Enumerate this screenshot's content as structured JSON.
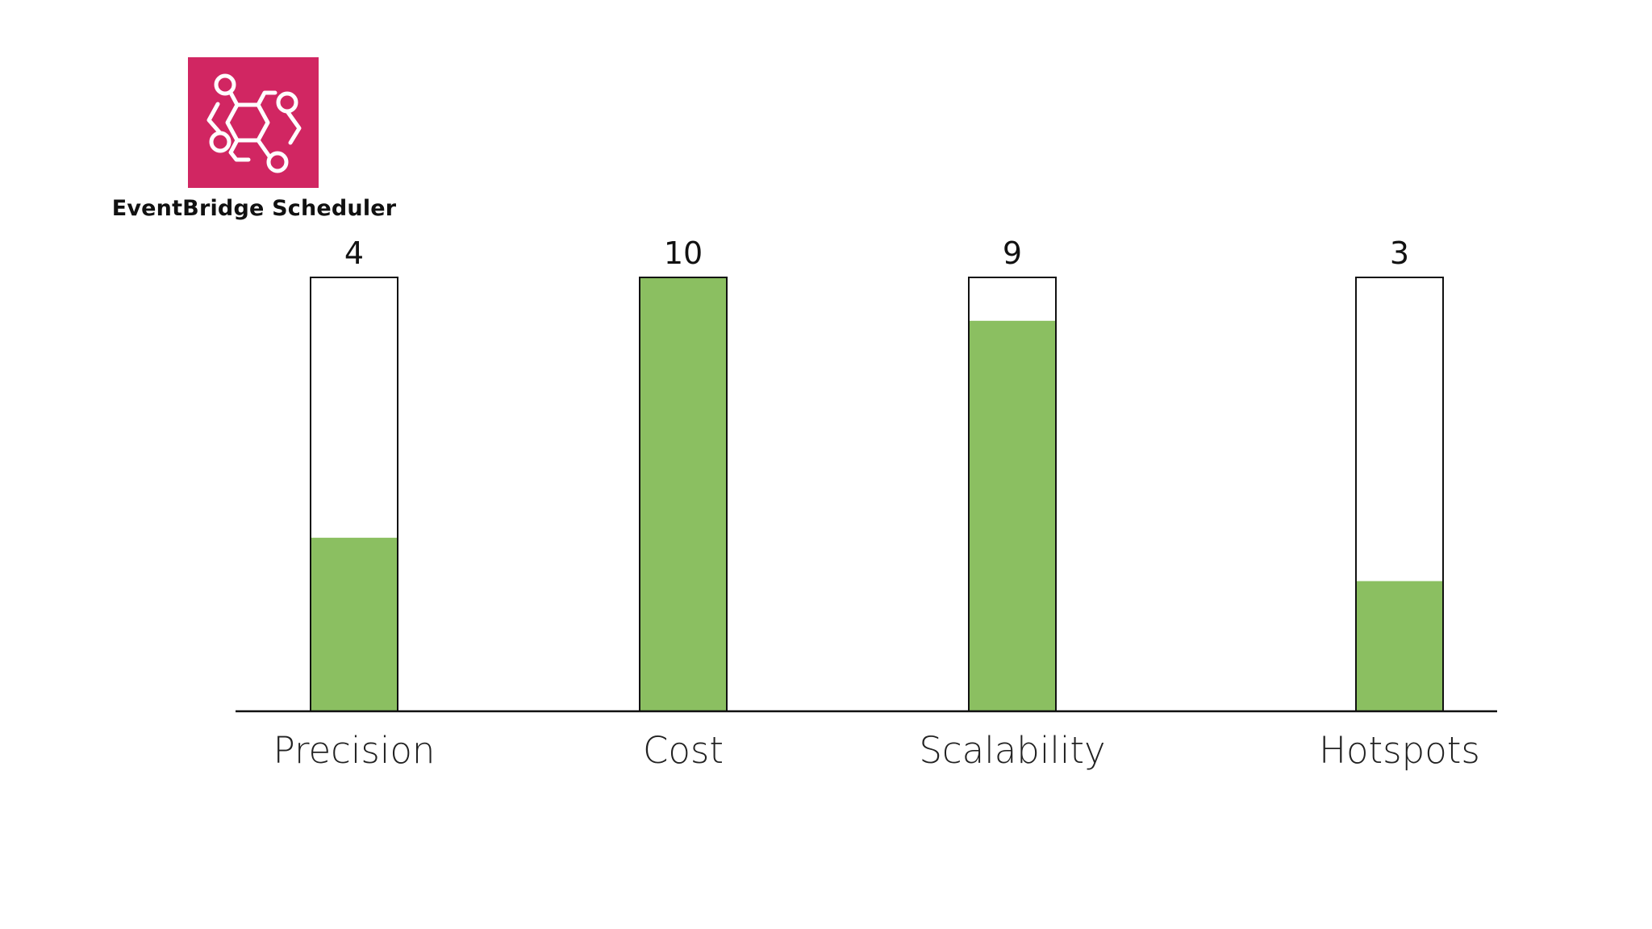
{
  "brand": {
    "name": "EventBridge Scheduler",
    "icon": "eventbridge-scheduler-icon",
    "icon_bg_color": "#D12662",
    "icon_fg_color": "#FFFFFF"
  },
  "colors": {
    "fill": "#8BBF61",
    "outline": "#111111",
    "baseline": "#111111"
  },
  "chart_data": {
    "type": "bar",
    "categories": [
      "Precision",
      "Cost",
      "Scalability",
      "Hotspots"
    ],
    "values": [
      4,
      10,
      9,
      3
    ],
    "ylim": [
      0,
      10
    ],
    "grid": false,
    "legend": "none",
    "title": "",
    "xlabel": "",
    "ylabel": ""
  }
}
